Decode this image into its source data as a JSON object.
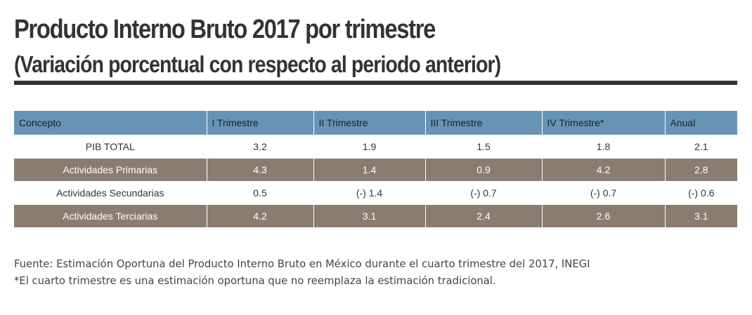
{
  "title": "Producto Interno Bruto 2017 por trimestre",
  "subtitle": "(Variación porcentual con respecto al periodo anterior)",
  "table": {
    "headers": [
      "Concepto",
      "I Trimestre",
      "II Trimestre",
      "III Trimestre",
      "IV Trimestre*",
      "Anual"
    ],
    "rows": [
      {
        "style": "light",
        "cells": [
          "PIB TOTAL",
          "3.2",
          "1.9",
          "1.5",
          "1.8",
          "2.1"
        ]
      },
      {
        "style": "dark",
        "cells": [
          "Actividades Primarias",
          "4.3",
          "1.4",
          "0.9",
          "4.2",
          "2.8"
        ]
      },
      {
        "style": "light",
        "cells": [
          "Actividades Secundarias",
          "0.5",
          "(-) 1.4",
          "(-) 0.7",
          "(-) 0.7",
          "(-) 0.6"
        ]
      },
      {
        "style": "dark",
        "cells": [
          "Actividades Terciarias",
          "4.2",
          "3.1",
          "2.4",
          "2.6",
          "3.1"
        ]
      }
    ]
  },
  "footnotes": {
    "source": "Fuente: Estimación Oportuna del Producto Interno Bruto en México durante el cuarto trimestre del 2017, INEGI",
    "note": "*El cuarto trimestre es una estimación oportuna que no reemplaza la estimación tradicional."
  },
  "colors": {
    "header_bg": "#6694b6",
    "dark_row_bg": "#8a7d6f",
    "title_text": "#333333",
    "rule": "#333333"
  }
}
